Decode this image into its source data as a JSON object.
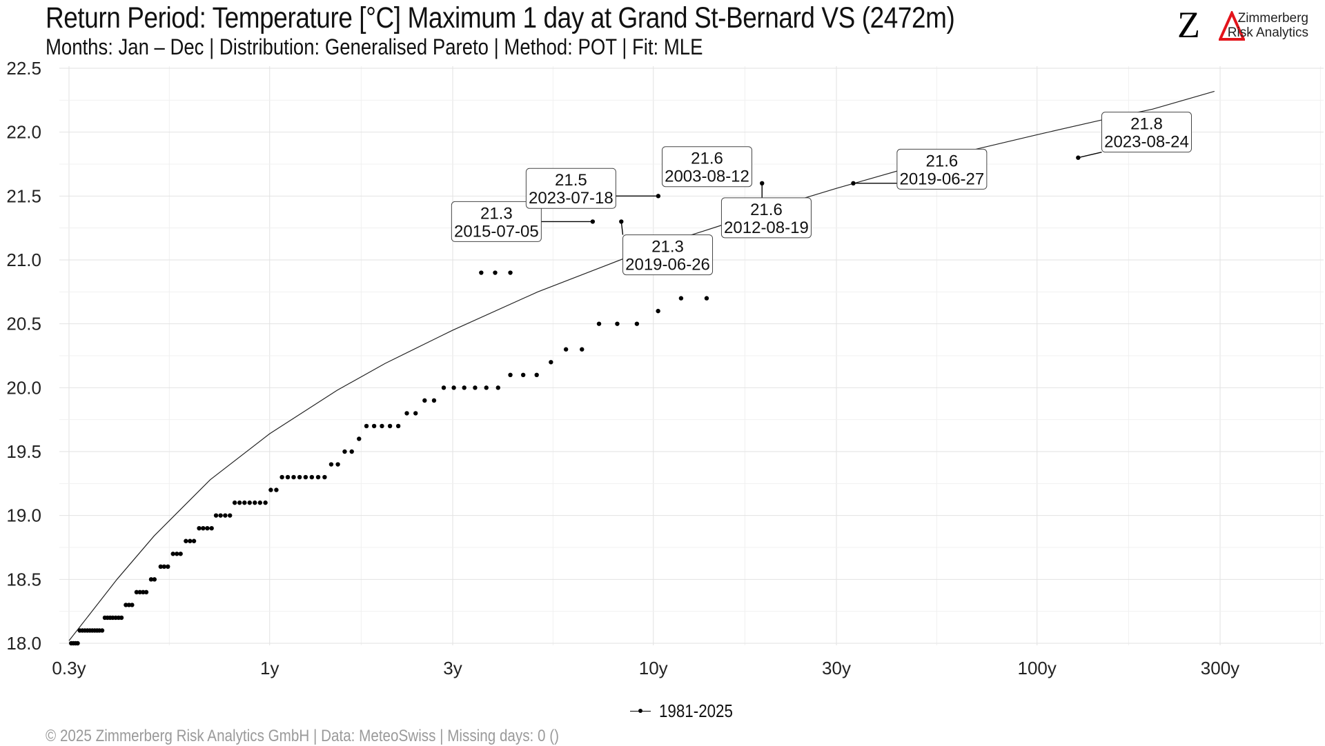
{
  "title": "Return Period: Temperature [°C] Maximum 1 day at Grand St-Bernard  VS (2472m)",
  "subtitle": "Months: Jan – Dec | Distribution: Generalised Pareto | Method: POT | Fit: MLE",
  "logo": {
    "mark": "Z",
    "line1": "Zimmerberg",
    "line2": "Risk Analytics",
    "accent_color": "#e3141b"
  },
  "footer": "©  2025 Zimmerberg Risk Analytics GmbH | Data: MeteoSwiss | Missing days: 0 ()",
  "legend": {
    "label": "1981-2025"
  },
  "colors": {
    "points": "#000000",
    "fit_line": "#222222",
    "grid": "#e2e2e2",
    "label_border": "#444444"
  },
  "chart_data": {
    "type": "scatter",
    "title": "Return Period: Temperature [°C] Maximum 1 day at Grand St-Bernard  VS (2472m)",
    "xlabel": "",
    "ylabel": "",
    "x_scale": "log",
    "x_ticks": [
      0.3,
      1,
      3,
      10,
      30,
      100,
      300
    ],
    "x_tick_labels": [
      "0.3y",
      "1y",
      "3y",
      "10y",
      "30y",
      "100y",
      "300y"
    ],
    "xlim": [
      0.28,
      580
    ],
    "y_ticks": [
      18.0,
      18.5,
      19.0,
      19.5,
      20.0,
      20.5,
      21.0,
      21.5,
      22.0,
      22.5
    ],
    "y_tick_labels": [
      "18.0",
      "18.5",
      "19.0",
      "19.5",
      "20.0",
      "20.5",
      "21.0",
      "21.5",
      "22.0",
      "22.5"
    ],
    "ylim": [
      17.95,
      22.5
    ],
    "grid": true,
    "legend_position": "bottom",
    "series": [
      {
        "name": "1981-2025",
        "points": [
          [
            0.304,
            18.0
          ],
          [
            0.308,
            18.0
          ],
          [
            0.312,
            18.0
          ],
          [
            0.316,
            18.0
          ],
          [
            0.32,
            18.1
          ],
          [
            0.325,
            18.1
          ],
          [
            0.33,
            18.1
          ],
          [
            0.335,
            18.1
          ],
          [
            0.34,
            18.1
          ],
          [
            0.345,
            18.1
          ],
          [
            0.35,
            18.1
          ],
          [
            0.355,
            18.1
          ],
          [
            0.36,
            18.1
          ],
          [
            0.366,
            18.1
          ],
          [
            0.372,
            18.2
          ],
          [
            0.378,
            18.2
          ],
          [
            0.384,
            18.2
          ],
          [
            0.39,
            18.2
          ],
          [
            0.397,
            18.2
          ],
          [
            0.404,
            18.2
          ],
          [
            0.411,
            18.2
          ],
          [
            0.422,
            18.3
          ],
          [
            0.43,
            18.3
          ],
          [
            0.438,
            18.3
          ],
          [
            0.45,
            18.4
          ],
          [
            0.459,
            18.4
          ],
          [
            0.468,
            18.4
          ],
          [
            0.477,
            18.4
          ],
          [
            0.491,
            18.5
          ],
          [
            0.501,
            18.5
          ],
          [
            0.52,
            18.6
          ],
          [
            0.531,
            18.6
          ],
          [
            0.543,
            18.6
          ],
          [
            0.56,
            18.7
          ],
          [
            0.573,
            18.7
          ],
          [
            0.586,
            18.7
          ],
          [
            0.605,
            18.8
          ],
          [
            0.62,
            18.8
          ],
          [
            0.635,
            18.8
          ],
          [
            0.655,
            18.9
          ],
          [
            0.671,
            18.9
          ],
          [
            0.688,
            18.9
          ],
          [
            0.706,
            18.9
          ],
          [
            0.725,
            19.0
          ],
          [
            0.745,
            19.0
          ],
          [
            0.766,
            19.0
          ],
          [
            0.788,
            19.0
          ],
          [
            0.811,
            19.1
          ],
          [
            0.835,
            19.1
          ],
          [
            0.86,
            19.1
          ],
          [
            0.887,
            19.1
          ],
          [
            0.915,
            19.1
          ],
          [
            0.944,
            19.1
          ],
          [
            0.975,
            19.1
          ],
          [
            1.007,
            19.2
          ],
          [
            1.041,
            19.2
          ],
          [
            1.077,
            19.3
          ],
          [
            1.115,
            19.3
          ],
          [
            1.155,
            19.3
          ],
          [
            1.197,
            19.3
          ],
          [
            1.241,
            19.3
          ],
          [
            1.288,
            19.3
          ],
          [
            1.338,
            19.3
          ],
          [
            1.391,
            19.3
          ],
          [
            1.447,
            19.4
          ],
          [
            1.506,
            19.4
          ],
          [
            1.569,
            19.5
          ],
          [
            1.637,
            19.5
          ],
          [
            1.71,
            19.6
          ],
          [
            1.788,
            19.7
          ],
          [
            1.872,
            19.7
          ],
          [
            1.962,
            19.7
          ],
          [
            2.059,
            19.7
          ],
          [
            2.164,
            19.7
          ],
          [
            2.278,
            19.8
          ],
          [
            2.401,
            19.8
          ],
          [
            2.535,
            19.9
          ],
          [
            2.682,
            19.9
          ],
          [
            2.843,
            20.0
          ],
          [
            3.02,
            20.0
          ],
          [
            3.215,
            20.0
          ],
          [
            3.431,
            20.0
          ],
          [
            3.671,
            20.0
          ],
          [
            3.939,
            20.0
          ],
          [
            4.24,
            20.1
          ],
          [
            4.58,
            20.1
          ],
          [
            4.966,
            20.1
          ],
          [
            5.409,
            20.2
          ],
          [
            5.92,
            20.3
          ],
          [
            6.515,
            20.3
          ],
          [
            7.218,
            20.5
          ],
          [
            8.053,
            20.5
          ],
          [
            9.06,
            20.5
          ],
          [
            10.29,
            20.6
          ],
          [
            11.81,
            20.7
          ],
          [
            13.77,
            20.7
          ],
          [
            3.56,
            20.9
          ],
          [
            3.87,
            20.9
          ],
          [
            4.24,
            20.9
          ],
          [
            6.95,
            21.3
          ],
          [
            8.25,
            21.3
          ],
          [
            10.3,
            21.5
          ],
          [
            13.4,
            21.6
          ],
          [
            19.2,
            21.6
          ],
          [
            33.2,
            21.6
          ],
          [
            128,
            21.8
          ]
        ]
      }
    ],
    "fit_curve": {
      "x": [
        0.3,
        0.4,
        0.5,
        0.7,
        1,
        1.5,
        2,
        3,
        5,
        7,
        10,
        15,
        20,
        30,
        50,
        70,
        100,
        150,
        200,
        290
      ],
      "y": [
        18.02,
        18.5,
        18.84,
        19.28,
        19.64,
        19.98,
        20.19,
        20.45,
        20.75,
        20.92,
        21.1,
        21.27,
        21.4,
        21.56,
        21.75,
        21.87,
        21.98,
        22.1,
        22.18,
        22.32
      ]
    },
    "annotations": [
      {
        "value": "21.3",
        "date": "2015-07-05",
        "x": 3.9,
        "y": 21.3,
        "anchor_x": 6.95,
        "anchor_y": 21.3
      },
      {
        "value": "21.5",
        "date": "2023-07-18",
        "x": 6.1,
        "y": 21.56,
        "anchor_x": 10.3,
        "anchor_y": 21.5
      },
      {
        "value": "21.6",
        "date": "2003-08-12",
        "x": 13.8,
        "y": 21.73,
        "anchor_x": 13.4,
        "anchor_y": 21.6
      },
      {
        "value": "21.3",
        "date": "2019-06-26",
        "x": 10.9,
        "y": 21.04,
        "anchor_x": 8.25,
        "anchor_y": 21.3
      },
      {
        "value": "21.6",
        "date": "2012-08-19",
        "x": 19.7,
        "y": 21.33,
        "anchor_x": 19.2,
        "anchor_y": 21.6
      },
      {
        "value": "21.6",
        "date": "2019-06-27",
        "x": 56.5,
        "y": 21.71,
        "anchor_x": 33.2,
        "anchor_y": 21.6
      },
      {
        "value": "21.8",
        "date": "2023-08-24",
        "x": 193,
        "y": 22.0,
        "anchor_x": 128,
        "anchor_y": 21.8
      }
    ]
  }
}
